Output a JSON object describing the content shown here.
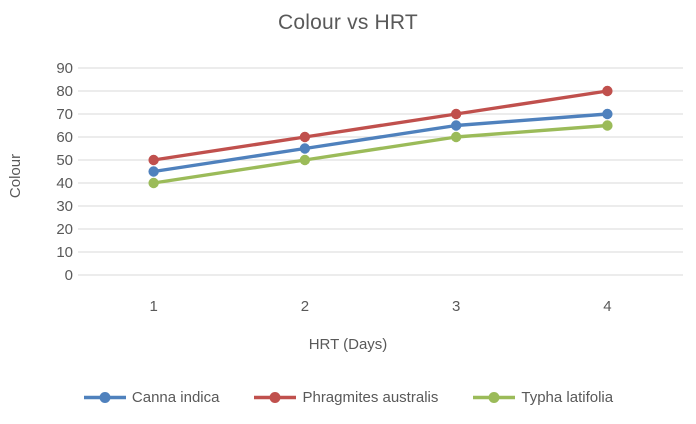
{
  "chart_data": {
    "type": "line",
    "title": "Colour vs HRT",
    "xlabel": "HRT (Days)",
    "ylabel": "Colour",
    "categories": [
      "1",
      "2",
      "3",
      "4"
    ],
    "series": [
      {
        "name": "Canna indica",
        "color": "#4F81BD",
        "values": [
          45,
          55,
          65,
          70
        ]
      },
      {
        "name": "Phragmites australis",
        "color": "#C0504D",
        "values": [
          50,
          60,
          70,
          80
        ]
      },
      {
        "name": "Typha latifolia",
        "color": "#9BBB59",
        "values": [
          40,
          50,
          60,
          65
        ]
      }
    ],
    "yticks": [
      90,
      80,
      70,
      60,
      50,
      40,
      30,
      20,
      10,
      0
    ],
    "ylim": [
      0,
      90
    ],
    "grid": true,
    "legend_position": "bottom",
    "marker": "circle",
    "gridline_color": "#D9D9D9",
    "text_color": "#595959",
    "background": "#FFFFFF"
  }
}
